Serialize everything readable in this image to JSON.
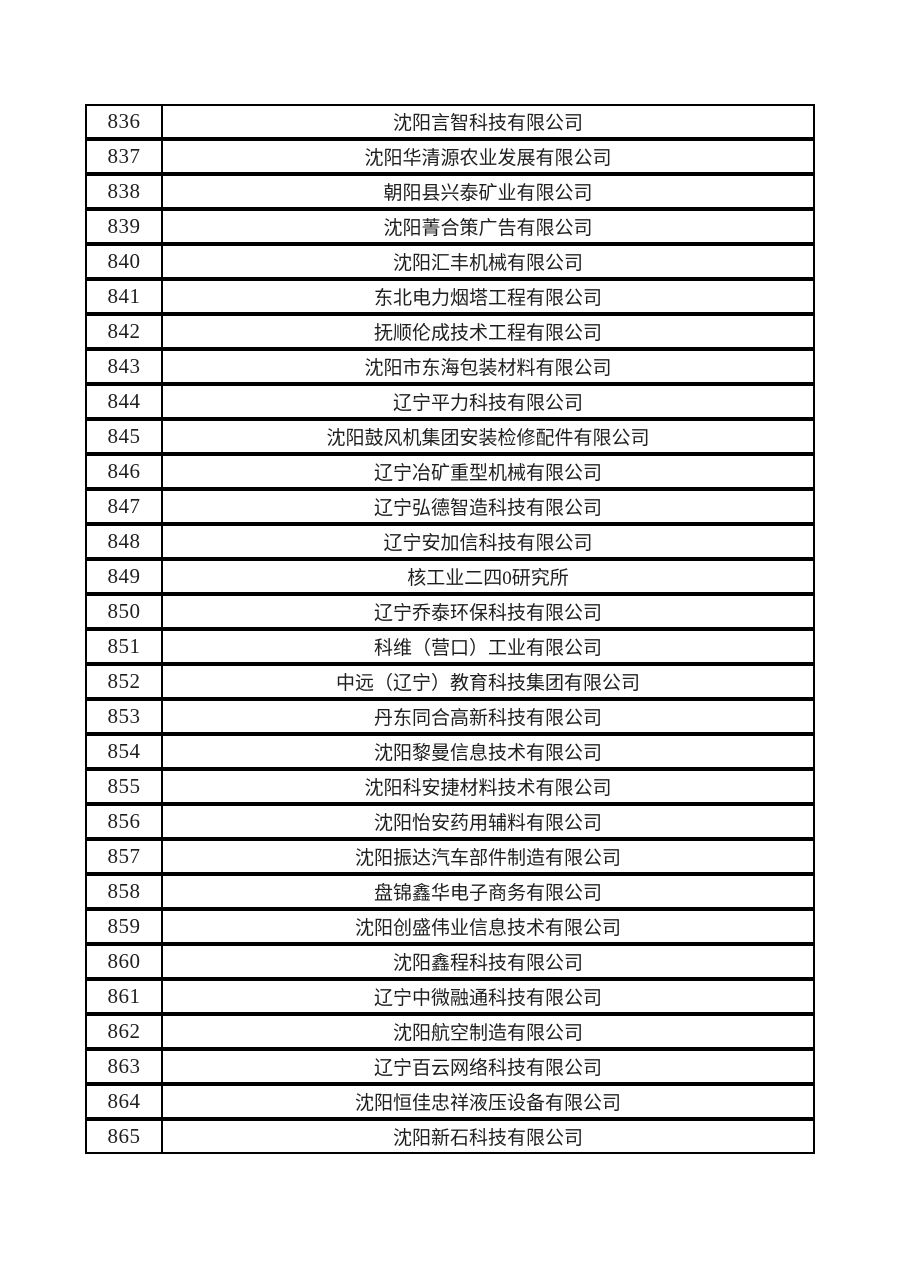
{
  "page": {
    "background_color": "#ffffff",
    "text_color": "#1f1f1f",
    "border_color": "#000000"
  },
  "table": {
    "columns": [
      "serial_number",
      "company_name"
    ],
    "rows": [
      {
        "no": "836",
        "name": "沈阳言智科技有限公司"
      },
      {
        "no": "837",
        "name": "沈阳华清源农业发展有限公司"
      },
      {
        "no": "838",
        "name": "朝阳县兴泰矿业有限公司"
      },
      {
        "no": "839",
        "name": "沈阳菁合策广告有限公司"
      },
      {
        "no": "840",
        "name": "沈阳汇丰机械有限公司"
      },
      {
        "no": "841",
        "name": "东北电力烟塔工程有限公司"
      },
      {
        "no": "842",
        "name": "抚顺伦成技术工程有限公司"
      },
      {
        "no": "843",
        "name": "沈阳市东海包装材料有限公司"
      },
      {
        "no": "844",
        "name": "辽宁平力科技有限公司"
      },
      {
        "no": "845",
        "name": "沈阳鼓风机集团安装检修配件有限公司"
      },
      {
        "no": "846",
        "name": "辽宁冶矿重型机械有限公司"
      },
      {
        "no": "847",
        "name": "辽宁弘德智造科技有限公司"
      },
      {
        "no": "848",
        "name": "辽宁安加信科技有限公司"
      },
      {
        "no": "849",
        "name": "核工业二四0研究所"
      },
      {
        "no": "850",
        "name": "辽宁乔泰环保科技有限公司"
      },
      {
        "no": "851",
        "name": "科维（营口）工业有限公司"
      },
      {
        "no": "852",
        "name": "中远（辽宁）教育科技集团有限公司"
      },
      {
        "no": "853",
        "name": "丹东同合高新科技有限公司"
      },
      {
        "no": "854",
        "name": "沈阳黎曼信息技术有限公司"
      },
      {
        "no": "855",
        "name": "沈阳科安捷材料技术有限公司"
      },
      {
        "no": "856",
        "name": "沈阳怡安药用辅料有限公司"
      },
      {
        "no": "857",
        "name": "沈阳振达汽车部件制造有限公司"
      },
      {
        "no": "858",
        "name": "盘锦鑫华电子商务有限公司"
      },
      {
        "no": "859",
        "name": "沈阳创盛伟业信息技术有限公司"
      },
      {
        "no": "860",
        "name": "沈阳鑫程科技有限公司"
      },
      {
        "no": "861",
        "name": "辽宁中微融通科技有限公司"
      },
      {
        "no": "862",
        "name": "沈阳航空制造有限公司"
      },
      {
        "no": "863",
        "name": "辽宁百云网络科技有限公司"
      },
      {
        "no": "864",
        "name": "沈阳恒佳忠祥液压设备有限公司"
      },
      {
        "no": "865",
        "name": "沈阳新石科技有限公司"
      }
    ]
  }
}
